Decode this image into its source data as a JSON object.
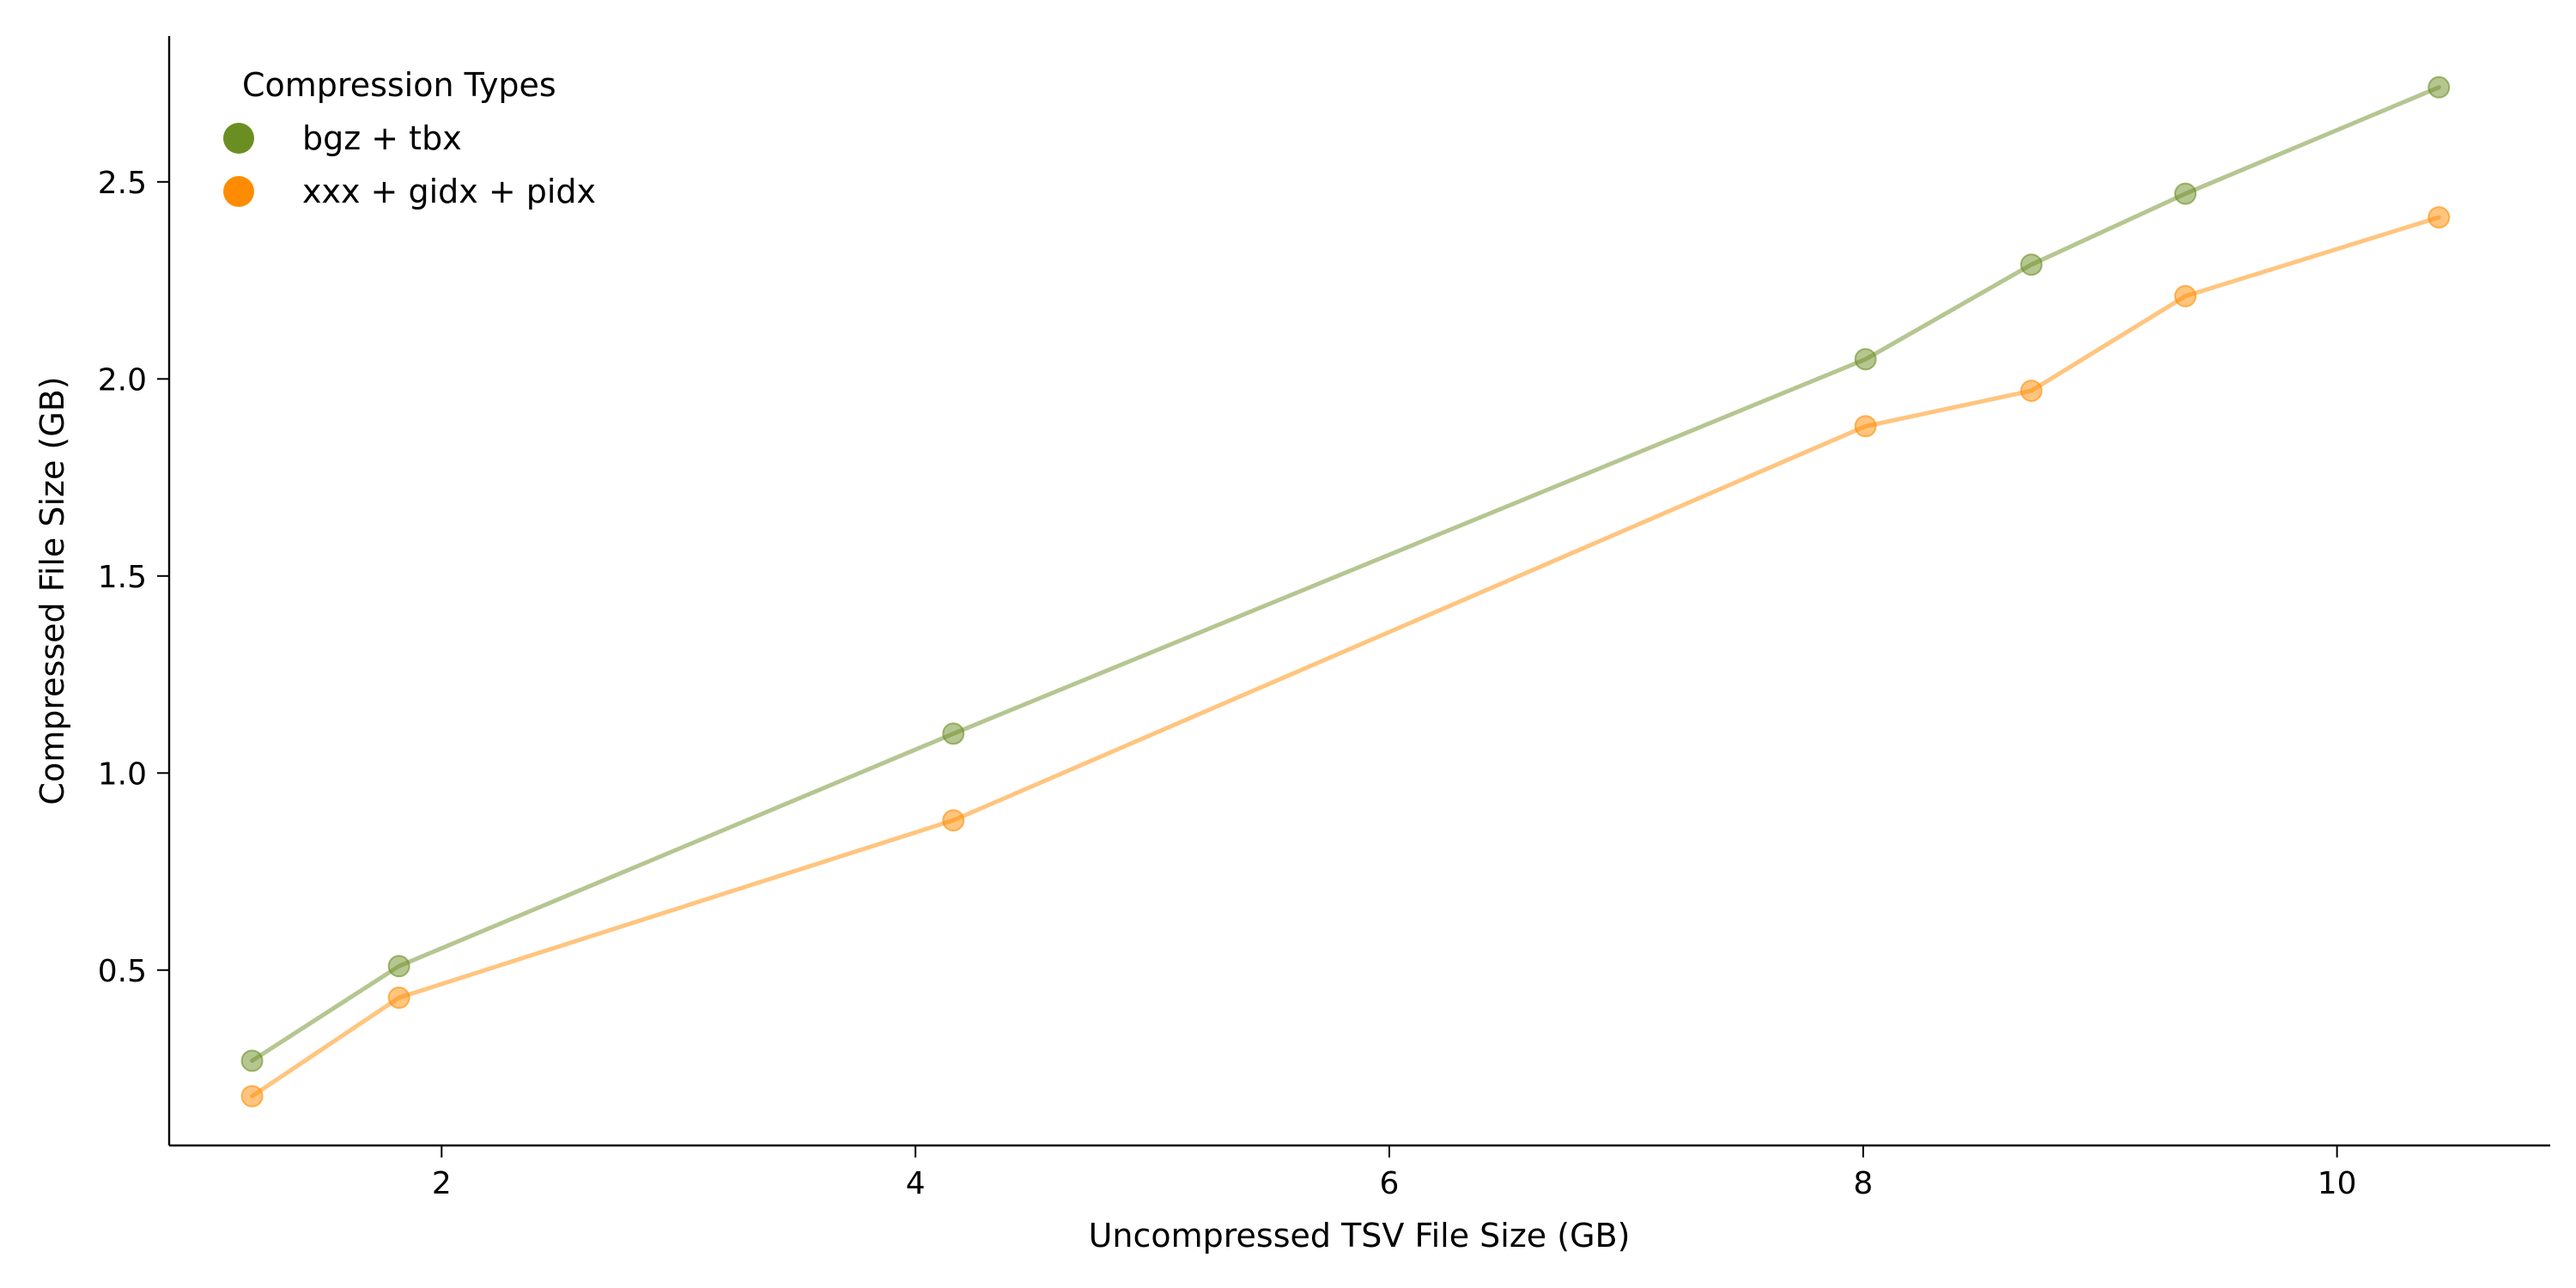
{
  "chart_data": {
    "type": "line",
    "title": "",
    "xlabel": "Uncompressed TSV File Size (GB)",
    "ylabel": "Compressed File Size (GB)",
    "xlim": [
      0.85,
      10.9
    ],
    "ylim": [
      0.055,
      2.87
    ],
    "xticks": [
      "2",
      "4",
      "6",
      "8",
      "10"
    ],
    "yticks": [
      "0.5",
      "1.0",
      "1.5",
      "2.0",
      "2.5"
    ],
    "grid": false,
    "legend": {
      "title": "Compression Types",
      "position": "top-left"
    },
    "series": [
      {
        "name": "bgz + tbx",
        "color": "#6b8e23",
        "points": [
          {
            "x": 1.2,
            "y": 0.27
          },
          {
            "x": 1.82,
            "y": 0.51
          },
          {
            "x": 4.16,
            "y": 1.1
          },
          {
            "x": 8.01,
            "y": 2.05
          },
          {
            "x": 8.71,
            "y": 2.29
          },
          {
            "x": 9.36,
            "y": 2.47
          },
          {
            "x": 10.43,
            "y": 2.74
          }
        ]
      },
      {
        "name": "xxx + gidx + pidx",
        "color": "#ff8c00",
        "points": [
          {
            "x": 1.2,
            "y": 0.18
          },
          {
            "x": 1.82,
            "y": 0.43
          },
          {
            "x": 4.16,
            "y": 0.88
          },
          {
            "x": 8.01,
            "y": 1.88
          },
          {
            "x": 8.71,
            "y": 1.97
          },
          {
            "x": 9.36,
            "y": 2.21
          },
          {
            "x": 10.43,
            "y": 2.41
          }
        ]
      }
    ]
  }
}
